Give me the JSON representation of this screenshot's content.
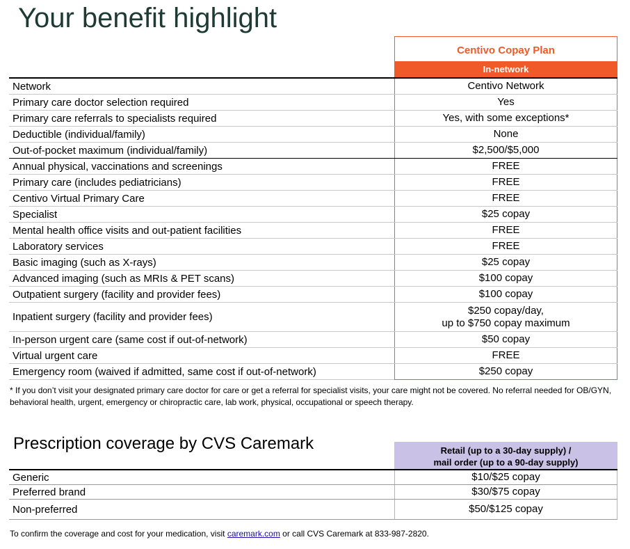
{
  "title": "Your benefit highlight",
  "plan": {
    "name": "Centivo Copay Plan",
    "column": "In-network"
  },
  "benefits": [
    {
      "label": "Network",
      "value": "Centivo Network"
    },
    {
      "label": "Primary care doctor selection required",
      "value": "Yes"
    },
    {
      "label": "Primary care referrals to specialists required",
      "value": "Yes, with some exceptions*"
    },
    {
      "label": "Deductible (individual/family)",
      "value": "None"
    },
    {
      "label": "Out-of-pocket maximum (individual/family)",
      "value": "$2,500/$5,000",
      "thick": true
    },
    {
      "label": "Annual physical, vaccinations and screenings",
      "value": "FREE"
    },
    {
      "label": "Primary care (includes pediatricians)",
      "value": "FREE"
    },
    {
      "label": "Centivo Virtual Primary Care",
      "value": "FREE"
    },
    {
      "label": "Specialist",
      "value": "$25 copay"
    },
    {
      "label": "Mental health office visits and out-patient facilities",
      "value": "FREE"
    },
    {
      "label": "Laboratory services",
      "value": "FREE"
    },
    {
      "label": "Basic imaging (such as X-rays)",
      "value": "$25 copay"
    },
    {
      "label": "Advanced imaging (such as MRIs & PET scans)",
      "value": "$100 copay"
    },
    {
      "label": "Outpatient surgery (facility and provider fees)",
      "value": "$100 copay"
    },
    {
      "label": "Inpatient surgery (facility and provider fees)",
      "value": "$250 copay/day,\nup to $750 copay maximum",
      "tall": true
    },
    {
      "label": "In-person urgent care (same cost if out-of-network)",
      "value": "$50 copay"
    },
    {
      "label": "Virtual urgent care",
      "value": "FREE"
    },
    {
      "label": "Emergency room (waived if admitted, same cost if out-of-network)",
      "value": "$250 copay"
    }
  ],
  "footnote": "* If you don’t visit your designated primary care doctor for care or get a referral for specialist visits, your care might not be covered. No referral needed for OB/GYN, behavioral health, urgent, emergency or chiropractic care, lab work, physical, occupational or speech therapy.",
  "rx": {
    "title": "Prescription coverage by CVS Caremark",
    "header": "Retail (up to a 30-day supply) /\nmail order (up to a 90-day supply)",
    "rows": [
      {
        "label": "Generic",
        "value": "$10/$25 copay"
      },
      {
        "label": "Preferred brand",
        "value": "$30/$75 copay"
      },
      {
        "label": "Non-preferred",
        "value": "$50/$125 copay",
        "tall": true
      }
    ],
    "confirm_before": "To confirm the coverage and cost for your medication, visit ",
    "link": "caremark.com",
    "confirm_after": " or call CVS Caremark at 833-987-2820."
  },
  "colors": {
    "accent": "#f05a28",
    "title": "#1d3b33",
    "rx_header": "#c9c1e6"
  }
}
